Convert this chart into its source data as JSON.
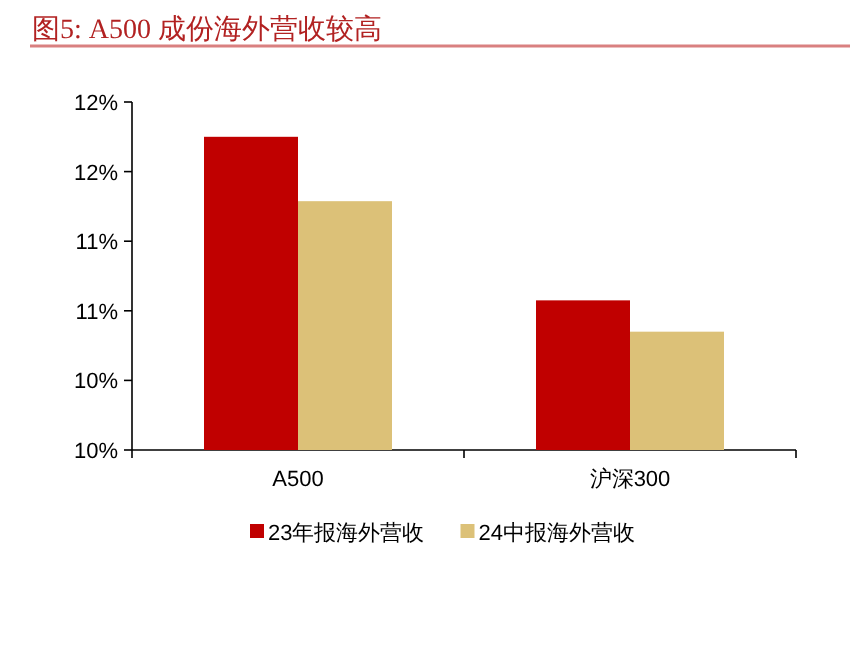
{
  "chart_data": {
    "type": "bar",
    "title": "图5:  A500 成份海外营收较高",
    "categories": [
      "A500",
      "沪深300"
    ],
    "series": [
      {
        "name": "23年报海外营收",
        "color": "#c00000",
        "values": [
          11.8,
          10.86
        ]
      },
      {
        "name": "24中报海外营收",
        "color": "#dcc178",
        "values": [
          11.43,
          10.68
        ]
      }
    ],
    "ylim": [
      10,
      12
    ],
    "yticks": [
      {
        "value": 10,
        "label": "10%"
      },
      {
        "value": 10.4,
        "label": "10%"
      },
      {
        "value": 10.8,
        "label": "11%"
      },
      {
        "value": 11.2,
        "label": "11%"
      },
      {
        "value": 11.6,
        "label": "12%"
      },
      {
        "value": 12,
        "label": "12%"
      }
    ],
    "legend": "bottom"
  }
}
